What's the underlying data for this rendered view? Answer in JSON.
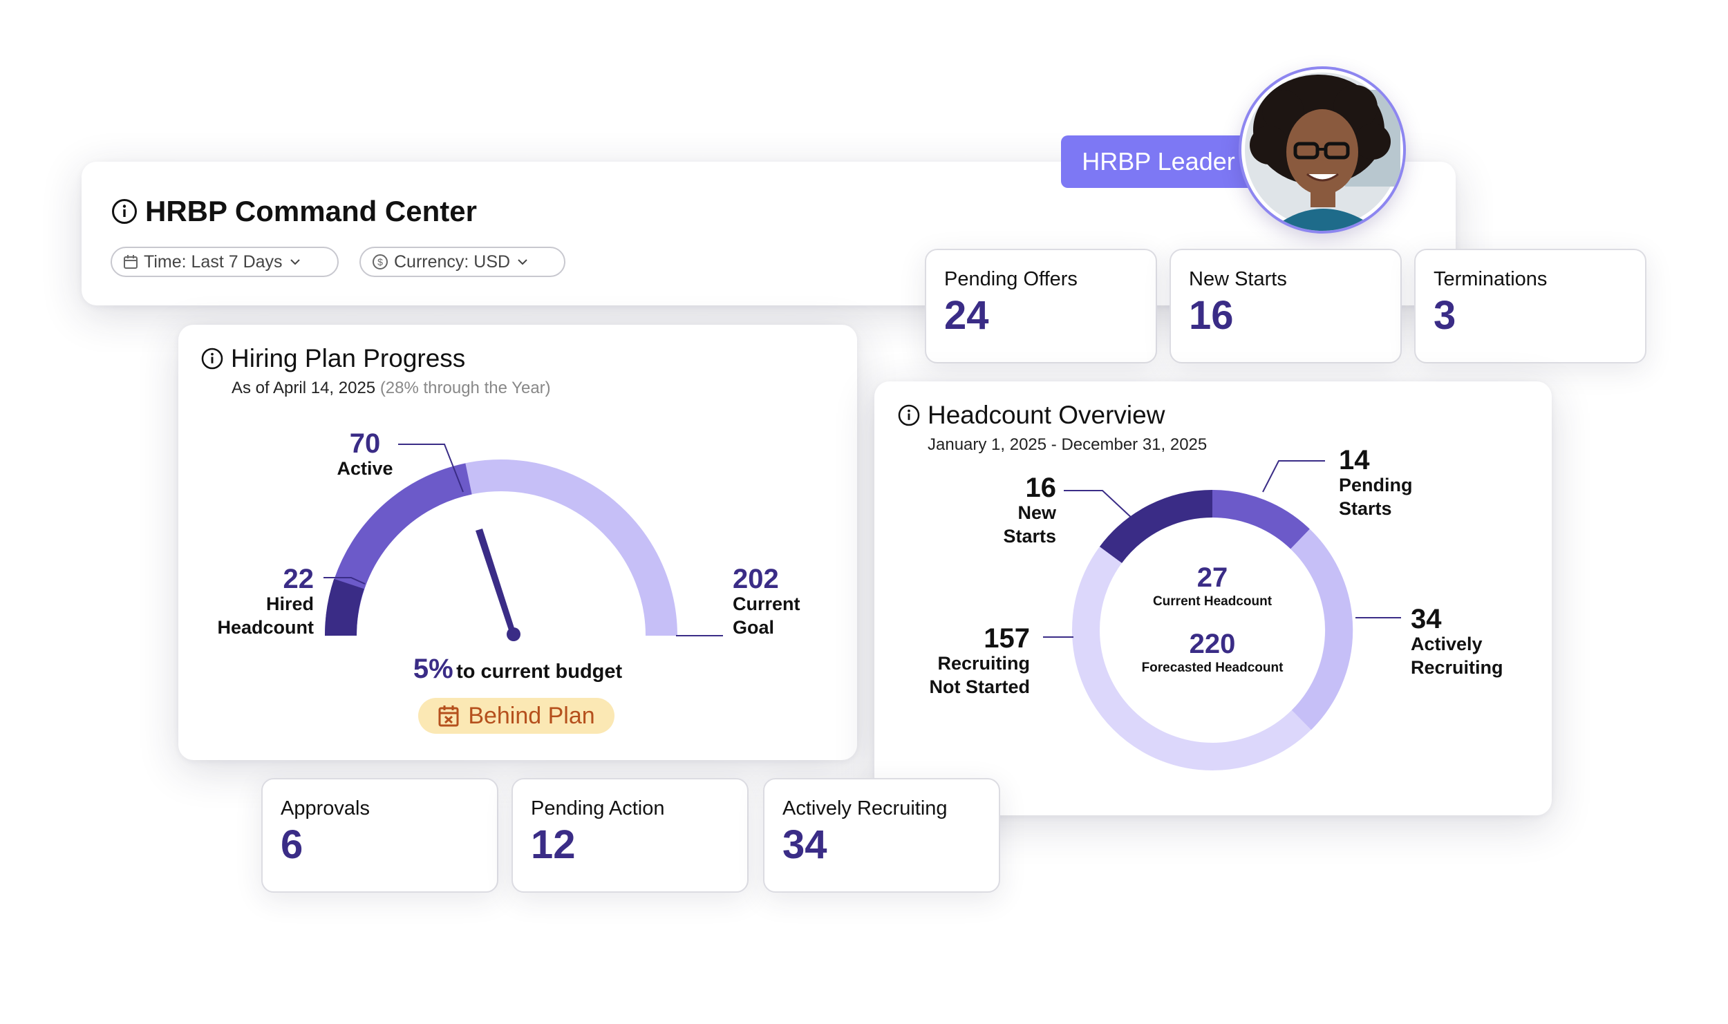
{
  "header": {
    "title": "HRBP Command Center",
    "filters": [
      {
        "label": "Time: Last 7 Days",
        "icon": "calendar-icon"
      },
      {
        "label": "Currency: USD",
        "icon": "dollar-icon"
      }
    ],
    "role_badge": "HRBP Leader"
  },
  "top_stats": [
    {
      "label": "Pending Offers",
      "value": "24"
    },
    {
      "label": "New Starts",
      "value": "16"
    },
    {
      "label": "Terminations",
      "value": "3"
    }
  ],
  "bottom_stats": [
    {
      "label": "Approvals",
      "value": "6"
    },
    {
      "label": "Pending Action",
      "value": "12"
    },
    {
      "label": "Actively Recruiting",
      "value": "34"
    }
  ],
  "hiring_plan": {
    "title": "Hiring Plan Progress",
    "as_of": "As of April 14, 2025",
    "year_progress": "(28% through the Year)",
    "active_value": "70",
    "active_label": "Active",
    "hired_value": "22",
    "hired_label_1": "Hired",
    "hired_label_2": "Headcount",
    "goal_value": "202",
    "goal_label_1": "Current",
    "goal_label_2": "Goal",
    "budget_pct": "5%",
    "budget_text": "to current budget",
    "status": "Behind Plan"
  },
  "headcount": {
    "title": "Headcount Overview",
    "date_range": "January 1, 2025 - December 31, 2025",
    "current_value": "27",
    "current_label": "Current Headcount",
    "forecast_value": "220",
    "forecast_label": "Forecasted Headcount",
    "segments": [
      {
        "value": "16",
        "label_1": "New",
        "label_2": "Starts"
      },
      {
        "value": "14",
        "label_1": "Pending",
        "label_2": "Starts"
      },
      {
        "value": "34",
        "label_1": "Actively",
        "label_2": "Recruiting"
      },
      {
        "value": "157",
        "label_1": "Recruiting",
        "label_2": "Not Started"
      }
    ]
  },
  "colors": {
    "dark_purple": "#3a2c86",
    "mid_purple": "#6c5ac9",
    "light_purple": "#c6bff7",
    "lightest_purple": "#dcd7fb",
    "badge": "#7d78f4",
    "warning_bg": "#fbe8b4",
    "warning_text": "#b5501d"
  }
}
